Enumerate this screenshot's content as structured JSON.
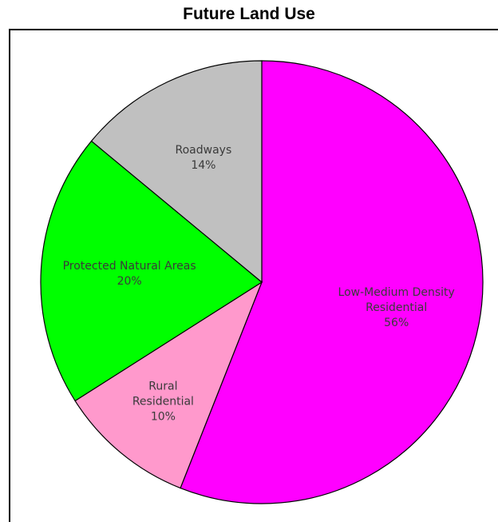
{
  "chart_data": {
    "type": "pie",
    "title": "Future Land Use",
    "slices": [
      {
        "label_lines": [
          "Low-Medium Density",
          "Residential",
          "56%"
        ],
        "value": 56,
        "color": "#ff00ff"
      },
      {
        "label_lines": [
          "Rural",
          "Residential",
          "10%"
        ],
        "value": 10,
        "color": "#ff99cc"
      },
      {
        "label_lines": [
          "Protected Natural Areas",
          "20%"
        ],
        "value": 20,
        "color": "#00ff00"
      },
      {
        "label_lines": [
          "Roadways",
          "14%"
        ],
        "value": 14,
        "color": "#c0c0c0"
      }
    ],
    "start": "12 o'clock",
    "direction": "clockwise",
    "legend": "none"
  }
}
